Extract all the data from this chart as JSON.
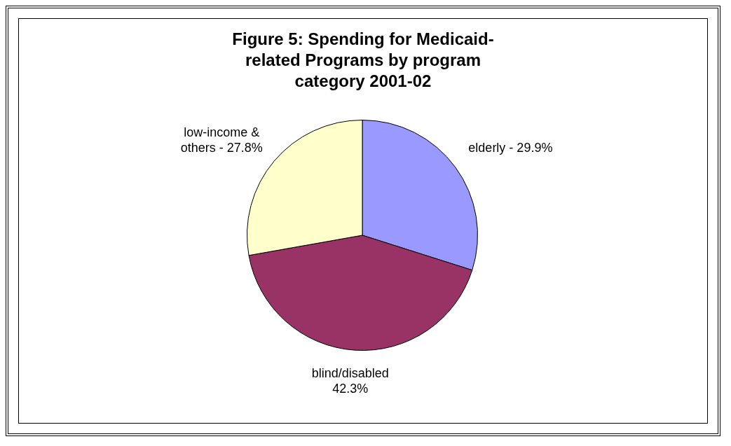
{
  "chart_data": {
    "type": "pie",
    "title": "Figure 5: Spending for Medicaid-related Programs by program category 2001-02",
    "categories": [
      "elderly - 29.9%",
      "blind/disabled 42.3%",
      "low-income & others - 27.8%"
    ],
    "values": [
      29.9,
      42.3,
      27.8
    ],
    "colors": [
      "#9999ff",
      "#993366",
      "#ffffcc"
    ],
    "legend": false
  }
}
